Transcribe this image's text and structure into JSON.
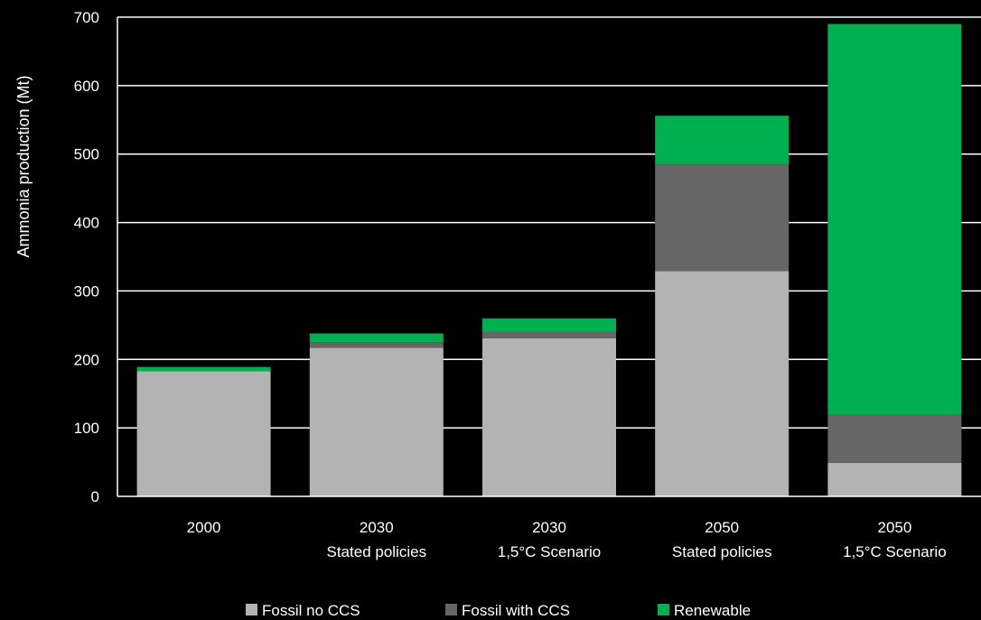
{
  "chart_data": {
    "type": "bar",
    "stacked": true,
    "categories": [
      [
        "2000",
        ""
      ],
      [
        "2030",
        "Stated policies"
      ],
      [
        "2030",
        "1,5°C Scenario"
      ],
      [
        "2050",
        "Stated policies"
      ],
      [
        "2050",
        "1,5°C Scenario"
      ]
    ],
    "series": [
      {
        "name": "Fossil no CCS",
        "color": "#b3b3b3",
        "values": [
          183,
          217,
          231,
          329,
          49
        ]
      },
      {
        "name": "Fossil with CCS",
        "color": "#666666",
        "values": [
          0,
          8,
          9,
          156,
          71
        ]
      },
      {
        "name": "Renewable",
        "color": "#00b050",
        "values": [
          6,
          13,
          20,
          71,
          570
        ]
      }
    ],
    "title": "",
    "xlabel": "",
    "ylabel": "Ammonia production (Mt)",
    "ylim": [
      0,
      700
    ],
    "yticks": [
      0,
      100,
      200,
      300,
      400,
      500,
      600,
      700
    ],
    "grid": true,
    "legend": "bottom"
  }
}
